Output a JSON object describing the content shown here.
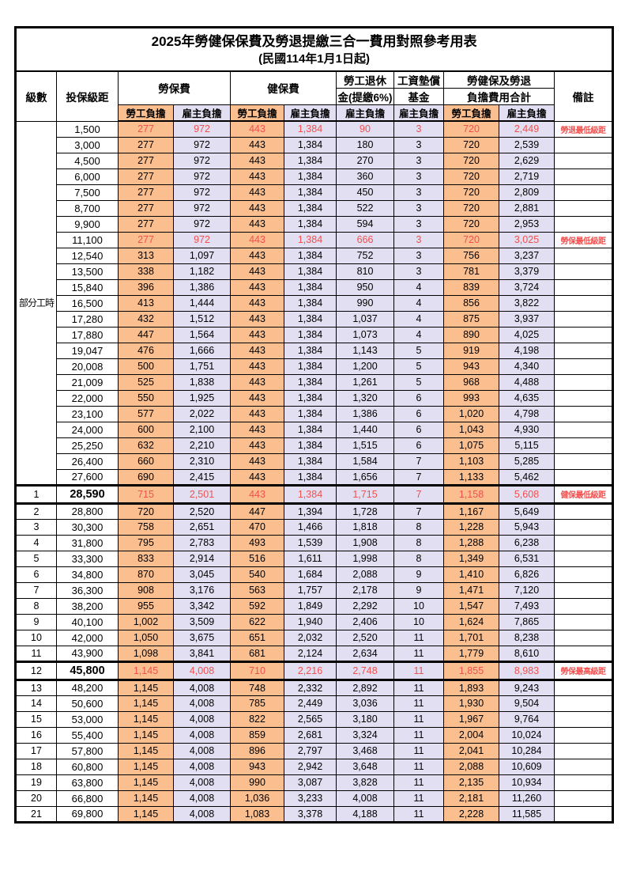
{
  "title": "2025年勞健保保費及勞退提繳三合一費用對照參考用表",
  "subtitle": "(民國114年1月1日起)",
  "colors": {
    "orange": "#fbbf8f",
    "lavender": "#e1dff1",
    "red": "#f0514f",
    "border": "#000000"
  },
  "header": {
    "level": "級數",
    "bracket": "投保級距",
    "labor_ins": "勞保費",
    "health_ins": "健保費",
    "pension_line1": "勞工退休",
    "pension_line2": "金(提繳6%)",
    "wage_fund_line1": "工資墊償",
    "wage_fund_line2": "基金",
    "total_line1": "勞健保及勞退",
    "total_line2": "負擔費用合計",
    "remark": "備註",
    "employee": "勞工負擔",
    "employer": "雇主負擔"
  },
  "part_time_label": "部分工時",
  "part_time_rowspan": 23,
  "rows": [
    {
      "lv": "",
      "br": "1,500",
      "v": [
        "277",
        "972",
        "443",
        "1,384",
        "90",
        "3",
        "720",
        "2,449"
      ],
      "rm": "勞退最低級距",
      "red": true
    },
    {
      "lv": "",
      "br": "3,000",
      "v": [
        "277",
        "972",
        "443",
        "1,384",
        "180",
        "3",
        "720",
        "2,539"
      ],
      "rm": ""
    },
    {
      "lv": "",
      "br": "4,500",
      "v": [
        "277",
        "972",
        "443",
        "1,384",
        "270",
        "3",
        "720",
        "2,629"
      ],
      "rm": ""
    },
    {
      "lv": "",
      "br": "6,000",
      "v": [
        "277",
        "972",
        "443",
        "1,384",
        "360",
        "3",
        "720",
        "2,719"
      ],
      "rm": ""
    },
    {
      "lv": "",
      "br": "7,500",
      "v": [
        "277",
        "972",
        "443",
        "1,384",
        "450",
        "3",
        "720",
        "2,809"
      ],
      "rm": ""
    },
    {
      "lv": "",
      "br": "8,700",
      "v": [
        "277",
        "972",
        "443",
        "1,384",
        "522",
        "3",
        "720",
        "2,881"
      ],
      "rm": ""
    },
    {
      "lv": "",
      "br": "9,900",
      "v": [
        "277",
        "972",
        "443",
        "1,384",
        "594",
        "3",
        "720",
        "2,953"
      ],
      "rm": ""
    },
    {
      "lv": "",
      "br": "11,100",
      "v": [
        "277",
        "972",
        "443",
        "1,384",
        "666",
        "3",
        "720",
        "3,025"
      ],
      "rm": "勞保最低級距",
      "red": true
    },
    {
      "lv": "",
      "br": "12,540",
      "v": [
        "313",
        "1,097",
        "443",
        "1,384",
        "752",
        "3",
        "756",
        "3,237"
      ],
      "rm": ""
    },
    {
      "lv": "",
      "br": "13,500",
      "v": [
        "338",
        "1,182",
        "443",
        "1,384",
        "810",
        "3",
        "781",
        "3,379"
      ],
      "rm": ""
    },
    {
      "lv": "",
      "br": "15,840",
      "v": [
        "396",
        "1,386",
        "443",
        "1,384",
        "950",
        "4",
        "839",
        "3,724"
      ],
      "rm": ""
    },
    {
      "lv": "",
      "br": "16,500",
      "v": [
        "413",
        "1,444",
        "443",
        "1,384",
        "990",
        "4",
        "856",
        "3,822"
      ],
      "rm": ""
    },
    {
      "lv": "",
      "br": "17,280",
      "v": [
        "432",
        "1,512",
        "443",
        "1,384",
        "1,037",
        "4",
        "875",
        "3,937"
      ],
      "rm": ""
    },
    {
      "lv": "",
      "br": "17,880",
      "v": [
        "447",
        "1,564",
        "443",
        "1,384",
        "1,073",
        "4",
        "890",
        "4,025"
      ],
      "rm": ""
    },
    {
      "lv": "",
      "br": "19,047",
      "v": [
        "476",
        "1,666",
        "443",
        "1,384",
        "1,143",
        "5",
        "919",
        "4,198"
      ],
      "rm": ""
    },
    {
      "lv": "",
      "br": "20,008",
      "v": [
        "500",
        "1,751",
        "443",
        "1,384",
        "1,200",
        "5",
        "943",
        "4,340"
      ],
      "rm": ""
    },
    {
      "lv": "",
      "br": "21,009",
      "v": [
        "525",
        "1,838",
        "443",
        "1,384",
        "1,261",
        "5",
        "968",
        "4,488"
      ],
      "rm": ""
    },
    {
      "lv": "",
      "br": "22,000",
      "v": [
        "550",
        "1,925",
        "443",
        "1,384",
        "1,320",
        "6",
        "993",
        "4,635"
      ],
      "rm": ""
    },
    {
      "lv": "",
      "br": "23,100",
      "v": [
        "577",
        "2,022",
        "443",
        "1,384",
        "1,386",
        "6",
        "1,020",
        "4,798"
      ],
      "rm": ""
    },
    {
      "lv": "",
      "br": "24,000",
      "v": [
        "600",
        "2,100",
        "443",
        "1,384",
        "1,440",
        "6",
        "1,043",
        "4,930"
      ],
      "rm": ""
    },
    {
      "lv": "",
      "br": "25,250",
      "v": [
        "632",
        "2,210",
        "443",
        "1,384",
        "1,515",
        "6",
        "1,075",
        "5,115"
      ],
      "rm": ""
    },
    {
      "lv": "",
      "br": "26,400",
      "v": [
        "660",
        "2,310",
        "443",
        "1,384",
        "1,584",
        "7",
        "1,103",
        "5,285"
      ],
      "rm": ""
    },
    {
      "lv": "",
      "br": "27,600",
      "v": [
        "690",
        "2,415",
        "443",
        "1,384",
        "1,656",
        "7",
        "1,133",
        "5,462"
      ],
      "rm": ""
    },
    {
      "lv": "1",
      "br": "28,590",
      "v": [
        "715",
        "2,501",
        "443",
        "1,384",
        "1,715",
        "7",
        "1,158",
        "5,608"
      ],
      "rm": "健保最低級距",
      "red": true,
      "bold": true,
      "thick": true
    },
    {
      "lv": "2",
      "br": "28,800",
      "v": [
        "720",
        "2,520",
        "447",
        "1,394",
        "1,728",
        "7",
        "1,167",
        "5,649"
      ],
      "rm": ""
    },
    {
      "lv": "3",
      "br": "30,300",
      "v": [
        "758",
        "2,651",
        "470",
        "1,466",
        "1,818",
        "8",
        "1,228",
        "5,943"
      ],
      "rm": ""
    },
    {
      "lv": "4",
      "br": "31,800",
      "v": [
        "795",
        "2,783",
        "493",
        "1,539",
        "1,908",
        "8",
        "1,288",
        "6,238"
      ],
      "rm": ""
    },
    {
      "lv": "5",
      "br": "33,300",
      "v": [
        "833",
        "2,914",
        "516",
        "1,611",
        "1,998",
        "8",
        "1,349",
        "6,531"
      ],
      "rm": ""
    },
    {
      "lv": "6",
      "br": "34,800",
      "v": [
        "870",
        "3,045",
        "540",
        "1,684",
        "2,088",
        "9",
        "1,410",
        "6,826"
      ],
      "rm": ""
    },
    {
      "lv": "7",
      "br": "36,300",
      "v": [
        "908",
        "3,176",
        "563",
        "1,757",
        "2,178",
        "9",
        "1,471",
        "7,120"
      ],
      "rm": ""
    },
    {
      "lv": "8",
      "br": "38,200",
      "v": [
        "955",
        "3,342",
        "592",
        "1,849",
        "2,292",
        "10",
        "1,547",
        "7,493"
      ],
      "rm": ""
    },
    {
      "lv": "9",
      "br": "40,100",
      "v": [
        "1,002",
        "3,509",
        "622",
        "1,940",
        "2,406",
        "10",
        "1,624",
        "7,865"
      ],
      "rm": ""
    },
    {
      "lv": "10",
      "br": "42,000",
      "v": [
        "1,050",
        "3,675",
        "651",
        "2,032",
        "2,520",
        "11",
        "1,701",
        "8,238"
      ],
      "rm": ""
    },
    {
      "lv": "11",
      "br": "43,900",
      "v": [
        "1,098",
        "3,841",
        "681",
        "2,124",
        "2,634",
        "11",
        "1,779",
        "8,610"
      ],
      "rm": ""
    },
    {
      "lv": "12",
      "br": "45,800",
      "v": [
        "1,145",
        "4,008",
        "710",
        "2,216",
        "2,748",
        "11",
        "1,855",
        "8,983"
      ],
      "rm": "勞保最高級距",
      "red": true,
      "bold": true,
      "thick": true
    },
    {
      "lv": "13",
      "br": "48,200",
      "v": [
        "1,145",
        "4,008",
        "748",
        "2,332",
        "2,892",
        "11",
        "1,893",
        "9,243"
      ],
      "rm": ""
    },
    {
      "lv": "14",
      "br": "50,600",
      "v": [
        "1,145",
        "4,008",
        "785",
        "2,449",
        "3,036",
        "11",
        "1,930",
        "9,504"
      ],
      "rm": ""
    },
    {
      "lv": "15",
      "br": "53,000",
      "v": [
        "1,145",
        "4,008",
        "822",
        "2,565",
        "3,180",
        "11",
        "1,967",
        "9,764"
      ],
      "rm": ""
    },
    {
      "lv": "16",
      "br": "55,400",
      "v": [
        "1,145",
        "4,008",
        "859",
        "2,681",
        "3,324",
        "11",
        "2,004",
        "10,024"
      ],
      "rm": ""
    },
    {
      "lv": "17",
      "br": "57,800",
      "v": [
        "1,145",
        "4,008",
        "896",
        "2,797",
        "3,468",
        "11",
        "2,041",
        "10,284"
      ],
      "rm": ""
    },
    {
      "lv": "18",
      "br": "60,800",
      "v": [
        "1,145",
        "4,008",
        "943",
        "2,942",
        "3,648",
        "11",
        "2,088",
        "10,609"
      ],
      "rm": ""
    },
    {
      "lv": "19",
      "br": "63,800",
      "v": [
        "1,145",
        "4,008",
        "990",
        "3,087",
        "3,828",
        "11",
        "2,135",
        "10,934"
      ],
      "rm": ""
    },
    {
      "lv": "20",
      "br": "66,800",
      "v": [
        "1,145",
        "4,008",
        "1,036",
        "3,233",
        "4,008",
        "11",
        "2,181",
        "11,260"
      ],
      "rm": ""
    },
    {
      "lv": "21",
      "br": "69,800",
      "v": [
        "1,145",
        "4,008",
        "1,083",
        "3,378",
        "4,188",
        "11",
        "2,228",
        "11,585"
      ],
      "rm": ""
    }
  ]
}
